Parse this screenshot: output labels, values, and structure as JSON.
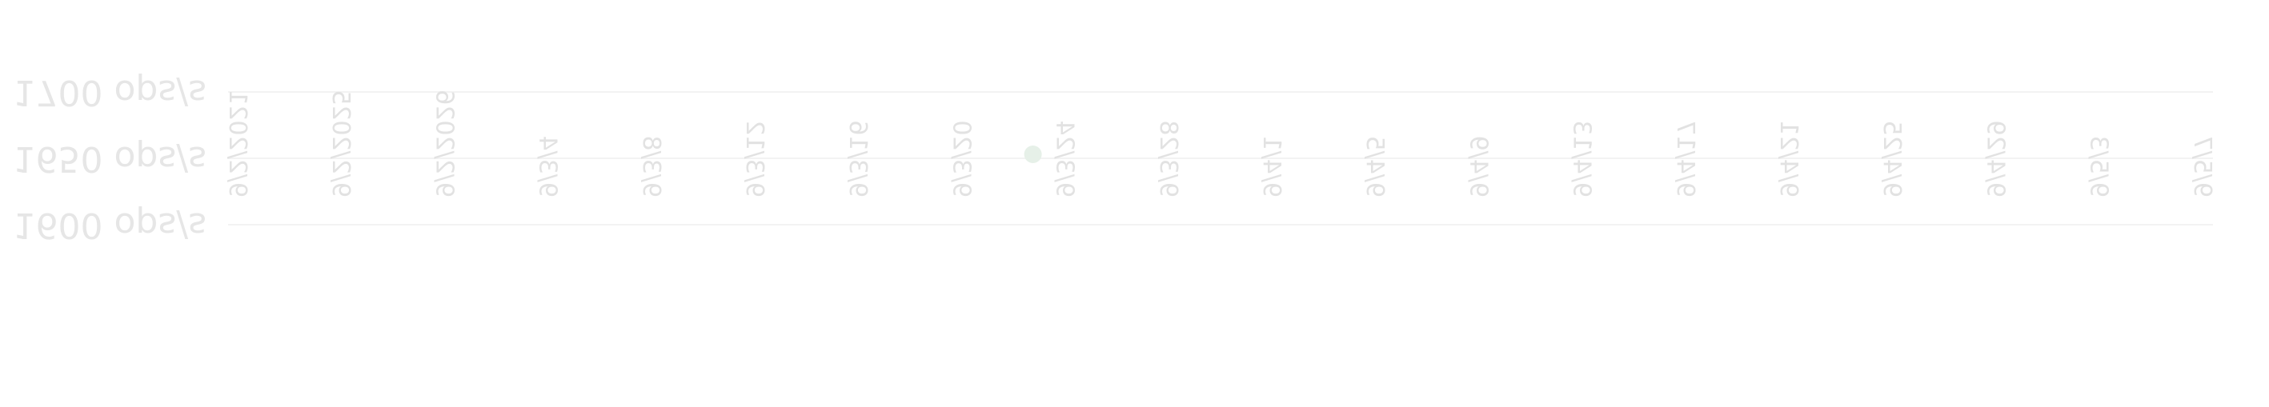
{
  "chart_data": {
    "type": "scatter",
    "title": "",
    "xlabel": "",
    "ylabel": "",
    "x_tick_labels": [
      "9/2/2021",
      "9/2/2025",
      "9/2/2026",
      "9/3/4",
      "9/3/8",
      "9/3/12",
      "9/3/16",
      "9/3/20",
      "9/3/24",
      "9/3/28",
      "9/4/1",
      "9/4/5",
      "9/4/9",
      "9/4/13",
      "9/4/17",
      "9/4/21",
      "9/4/25",
      "9/4/29",
      "9/5/3",
      "9/5/7"
    ],
    "y_tick_labels": [
      "1600 ops/s",
      "1650 ops/s",
      "1700 ops/s"
    ],
    "y_ticks": [
      1600,
      1650,
      1700
    ],
    "ylim": [
      1570,
      1750
    ],
    "series": [
      {
        "color": "#e6f0e8",
        "points": [
          {
            "x": "9/3/24",
            "y": 1650
          }
        ]
      }
    ],
    "grid": true,
    "orientation": "flipped-vertical"
  }
}
